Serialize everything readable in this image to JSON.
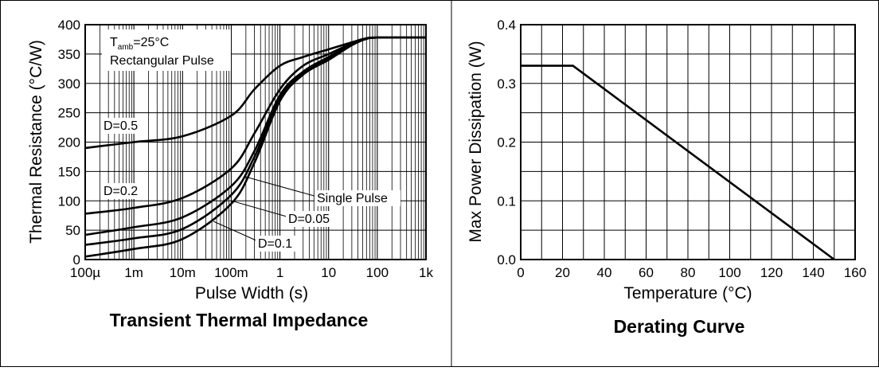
{
  "chart_data": [
    {
      "type": "line",
      "title": "Transient Thermal Impedance",
      "xlabel": "Pulse Width (s)",
      "ylabel": "Thermal Resistance (°C/W)",
      "x_scale": "log",
      "xlim": [
        0.0001,
        1000
      ],
      "ylim": [
        0,
        400
      ],
      "x_ticks": [
        {
          "value": 0.0001,
          "label": "100µ"
        },
        {
          "value": 0.001,
          "label": "1m"
        },
        {
          "value": 0.01,
          "label": "10m"
        },
        {
          "value": 0.1,
          "label": "100m"
        },
        {
          "value": 1,
          "label": "1"
        },
        {
          "value": 10,
          "label": "10"
        },
        {
          "value": 100,
          "label": "100"
        },
        {
          "value": 1000,
          "label": "1k"
        }
      ],
      "y_ticks": [
        0,
        50,
        100,
        150,
        200,
        250,
        300,
        350,
        400
      ],
      "grid": true,
      "condition_label": {
        "main": "T",
        "sub": "amb",
        "rest": "=25°C"
      },
      "pulse_label": "Rectangular Pulse",
      "series": [
        {
          "name": "D=0.5",
          "x": [
            0.0001,
            0.001,
            0.01,
            0.1,
            0.3,
            1,
            3,
            10,
            30,
            60,
            100,
            1000
          ],
          "y": [
            190,
            200,
            210,
            245,
            290,
            330,
            345,
            358,
            370,
            377,
            378,
            378
          ]
        },
        {
          "name": "D=0.2",
          "x": [
            0.0001,
            0.001,
            0.01,
            0.1,
            0.3,
            1,
            3,
            10,
            30,
            60,
            100,
            1000
          ],
          "y": [
            78,
            88,
            105,
            155,
            215,
            290,
            330,
            350,
            368,
            376,
            378,
            378
          ]
        },
        {
          "name": "D=0.1",
          "x": [
            0.0001,
            0.001,
            0.01,
            0.1,
            0.3,
            1,
            3,
            10,
            30,
            60,
            100,
            1000
          ],
          "y": [
            42,
            55,
            72,
            125,
            185,
            280,
            320,
            345,
            367,
            376,
            378,
            378
          ]
        },
        {
          "name": "D=0.05",
          "x": [
            0.0001,
            0.001,
            0.01,
            0.1,
            0.3,
            1,
            3,
            10,
            30,
            60,
            100,
            1000
          ],
          "y": [
            25,
            36,
            52,
            110,
            175,
            275,
            317,
            343,
            366,
            376,
            378,
            378
          ]
        },
        {
          "name": "Single Pulse",
          "x": [
            0.0001,
            0.001,
            0.01,
            0.1,
            0.3,
            1,
            3,
            10,
            30,
            60,
            100,
            1000
          ],
          "y": [
            5,
            18,
            35,
            95,
            165,
            270,
            315,
            340,
            365,
            376,
            378,
            378
          ]
        }
      ],
      "annotations": [
        "D=0.5",
        "D=0.2",
        "Single Pulse",
        "D=0.05",
        "D=0.1"
      ]
    },
    {
      "type": "line",
      "title": "Derating Curve",
      "xlabel": "Temperature (°C)",
      "ylabel": "Max Power Dissipation (W)",
      "xlim": [
        0,
        160
      ],
      "ylim": [
        0,
        0.4
      ],
      "x_ticks": [
        "0",
        "20",
        "40",
        "60",
        "80",
        "100",
        "120",
        "140",
        "160"
      ],
      "y_ticks": [
        "0.0",
        "0.1",
        "0.2",
        "0.3",
        "0.4"
      ],
      "grid": true,
      "series": [
        {
          "x": [
            0,
            25,
            150
          ],
          "y": [
            0.33,
            0.33,
            0
          ]
        }
      ]
    }
  ]
}
